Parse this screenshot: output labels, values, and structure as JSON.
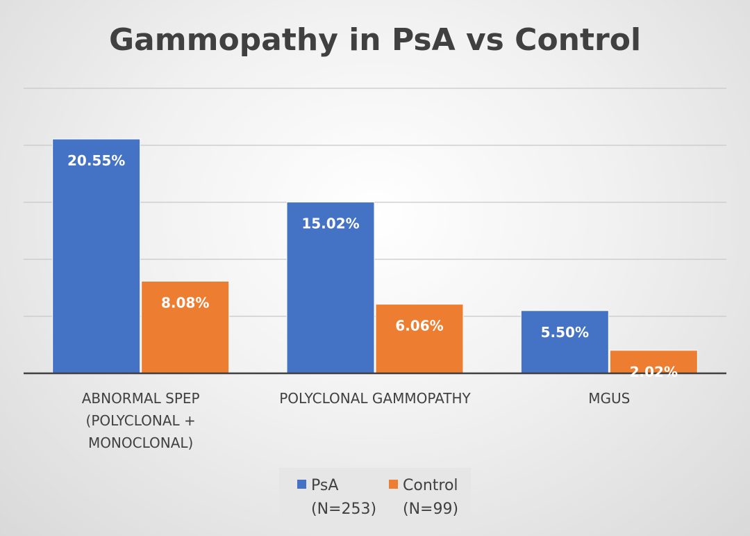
{
  "chart_data": {
    "type": "bar",
    "title": "Gammopathy in PsA vs Control",
    "categories": [
      [
        "ABNORMAL SPEP",
        "(POLYCLONAL +",
        "MONOCLONAL)"
      ],
      [
        "POLYCLONAL GAMMOPATHY"
      ],
      [
        "MGUS"
      ]
    ],
    "series": [
      {
        "name": "PsA",
        "name_line2": "(N=253)",
        "color": "#4472C4",
        "values": [
          20.55,
          15.02,
          5.5
        ],
        "labels": [
          "20.55%",
          "15.02%",
          "5.50%"
        ]
      },
      {
        "name": "Control",
        "name_line2": "(N=99)",
        "color": "#ED7D31",
        "values": [
          8.08,
          6.06,
          2.02
        ],
        "labels": [
          "8.08%",
          "6.06%",
          "2.02%"
        ]
      }
    ],
    "ylim": [
      0,
      25
    ],
    "grid": true,
    "y_ticks_shown": false,
    "legend_position": "bottom",
    "xlabel": "",
    "ylabel": ""
  }
}
